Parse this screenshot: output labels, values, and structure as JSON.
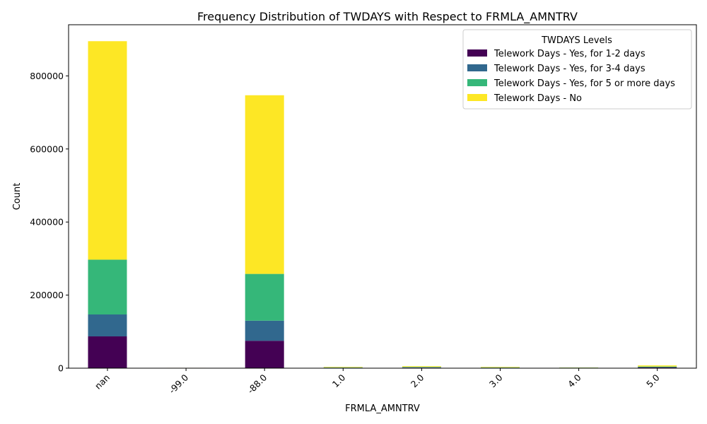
{
  "chart_data": {
    "type": "bar",
    "stacked": true,
    "title": "Frequency Distribution of TWDAYS with Respect to FRMLA_AMNTRV",
    "xlabel": "FRMLA_AMNTRV",
    "ylabel": "Count",
    "categories": [
      "nan",
      "-99.0",
      "-88.0",
      "1.0",
      "2.0",
      "3.0",
      "4.0",
      "5.0"
    ],
    "ylim": [
      0,
      940000
    ],
    "yticks": [
      0,
      200000,
      400000,
      600000,
      800000
    ],
    "x_tick_rotation": 45,
    "legend": {
      "title": "TWDAYS Levels",
      "placement": "top-right"
    },
    "series": [
      {
        "name": "Telework Days - Yes, for 1-2 days",
        "color": "#440154",
        "values": [
          87000,
          200,
          75000,
          900,
          1500,
          900,
          700,
          2000
        ]
      },
      {
        "name": "Telework Days - Yes, for 3-4 days",
        "color": "#31688e",
        "values": [
          60000,
          100,
          55000,
          500,
          800,
          500,
          400,
          1000
        ]
      },
      {
        "name": "Telework Days - Yes, for 5 or more days",
        "color": "#35b779",
        "values": [
          150000,
          200,
          128000,
          700,
          1200,
          700,
          500,
          1500
        ]
      },
      {
        "name": "Telework Days - No",
        "color": "#fde725",
        "values": [
          598000,
          500,
          489000,
          1400,
          2000,
          1400,
          400,
          3000
        ]
      }
    ]
  }
}
